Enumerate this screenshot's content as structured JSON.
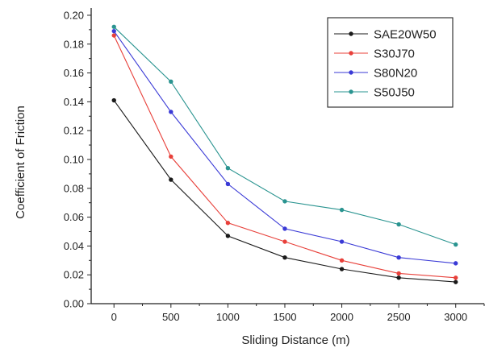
{
  "chart_data": {
    "type": "line",
    "title": "",
    "xlabel": "Sliding Distance (m)",
    "ylabel": "Coefficient of Friction",
    "x": [
      0,
      500,
      1000,
      1500,
      2000,
      2500,
      3000
    ],
    "x_ticks": [
      "0",
      "500",
      "1000",
      "1500",
      "2000",
      "2500",
      "3000"
    ],
    "xlim": [
      -200,
      3250
    ],
    "ylim": [
      0,
      0.205
    ],
    "y_ticks": [
      "0.00",
      "0.02",
      "0.04",
      "0.06",
      "0.08",
      "0.10",
      "0.12",
      "0.14",
      "0.16",
      "0.18",
      "0.20"
    ],
    "grid": false,
    "legend_position": "top-right",
    "series": [
      {
        "name": "SAE20W50",
        "color": "#1a1a1a",
        "values": [
          0.141,
          0.086,
          0.047,
          0.032,
          0.024,
          0.018,
          0.015
        ]
      },
      {
        "name": "S30J70",
        "color": "#e8403a",
        "values": [
          0.186,
          0.102,
          0.056,
          0.043,
          0.03,
          0.021,
          0.018
        ]
      },
      {
        "name": "S80N20",
        "color": "#3a3ad6",
        "values": [
          0.189,
          0.133,
          0.083,
          0.052,
          0.043,
          0.032,
          0.028
        ]
      },
      {
        "name": "S50J50",
        "color": "#2a9490",
        "values": [
          0.192,
          0.154,
          0.094,
          0.071,
          0.065,
          0.055,
          0.041
        ]
      }
    ]
  }
}
